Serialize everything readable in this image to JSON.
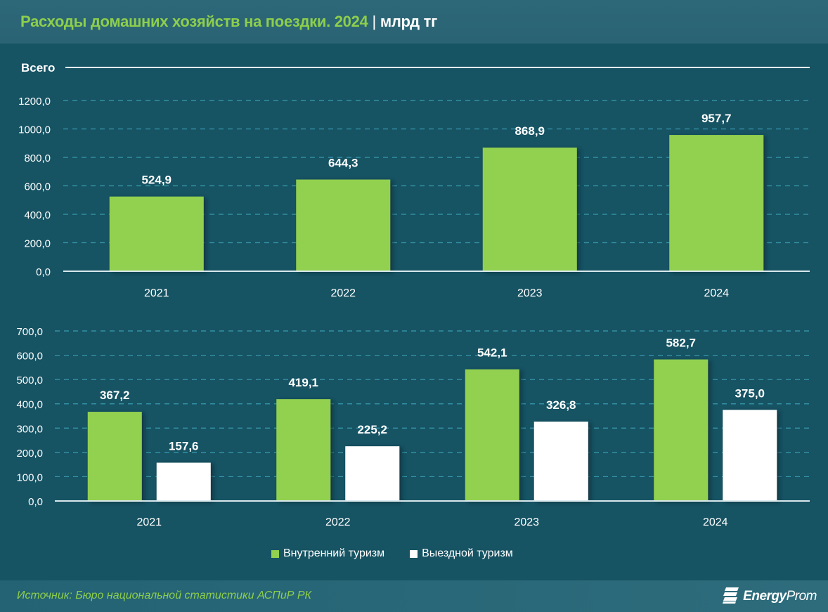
{
  "header": {
    "title": "Расходы домашних хозяйств на поездки. 2024",
    "separator": "|",
    "unit": "млрд тг"
  },
  "footer": {
    "source": "Источник: Бюро национальной статистики АСПиР РК",
    "logo_icon": "energyprom-logo-icon",
    "logo_text_a": "Energy",
    "logo_text_b": "Prom"
  },
  "colors": {
    "background": "#165363",
    "accent_green": "#92d050",
    "white": "#ffffff",
    "grid": "#3a9ab0",
    "title_green": "#8dce4c"
  },
  "chart_data": [
    {
      "type": "bar",
      "title": "Всего",
      "categories": [
        "2021",
        "2022",
        "2023",
        "2024"
      ],
      "values": [
        524.9,
        644.3,
        868.9,
        957.7
      ],
      "value_labels": [
        "524,9",
        "644,3",
        "868,9",
        "957,7"
      ],
      "ylim": [
        0,
        1200
      ],
      "yticks": [
        0,
        200,
        400,
        600,
        800,
        1000,
        1200
      ],
      "ytick_labels": [
        "0,0",
        "200,0",
        "400,0",
        "600,0",
        "800,0",
        "1000,0",
        "1200,0"
      ],
      "grid": true,
      "color": "#92d050"
    },
    {
      "type": "bar",
      "title": "",
      "categories": [
        "2021",
        "2022",
        "2023",
        "2024"
      ],
      "series": [
        {
          "name": "Внутренний туризм",
          "values": [
            367.2,
            419.1,
            542.1,
            582.7
          ],
          "value_labels": [
            "367,2",
            "419,1",
            "542,1",
            "582,7"
          ],
          "color": "#92d050"
        },
        {
          "name": "Выездной туризм",
          "values": [
            157.6,
            225.2,
            326.8,
            375.0
          ],
          "value_labels": [
            "157,6",
            "225,2",
            "326,8",
            "375,0"
          ],
          "color": "#ffffff"
        }
      ],
      "ylim": [
        0,
        700
      ],
      "yticks": [
        0,
        100,
        200,
        300,
        400,
        500,
        600,
        700
      ],
      "ytick_labels": [
        "0,0",
        "100,0",
        "200,0",
        "300,0",
        "400,0",
        "500,0",
        "600,0",
        "700,0"
      ],
      "grid": true,
      "legend": "bottom-center"
    }
  ]
}
